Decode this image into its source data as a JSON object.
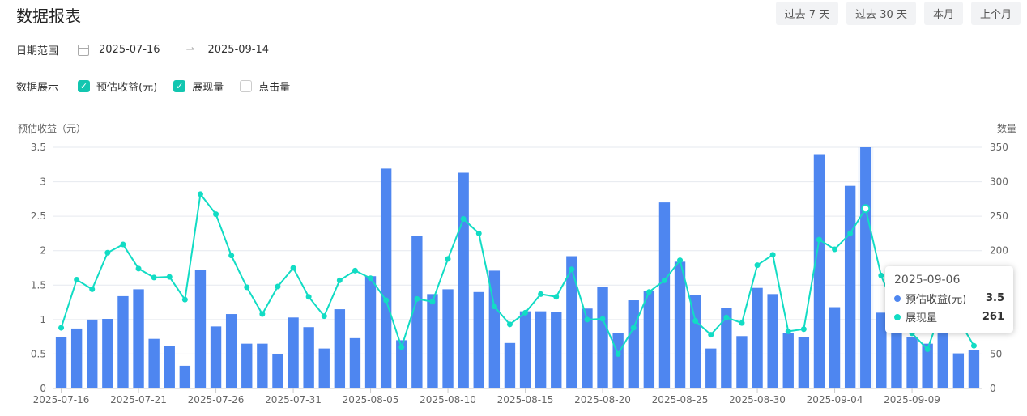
{
  "title": "数据报表",
  "range_buttons": [
    "过去 7 天",
    "过去 30 天",
    "本月",
    "上个月"
  ],
  "date_range": {
    "label": "日期范围",
    "start": "2025-07-16",
    "end": "2025-09-14",
    "icon": "calendar-icon"
  },
  "display": {
    "label": "数据展示",
    "options": [
      {
        "label": "预估收益(元)",
        "checked": true
      },
      {
        "label": "展现量",
        "checked": true
      },
      {
        "label": "点击量",
        "checked": false
      }
    ]
  },
  "colors": {
    "bar": "#4e86f0",
    "line": "#12dcc4",
    "accent": "#12c6b0"
  },
  "tooltip": {
    "date": "2025-09-06",
    "rows": [
      {
        "name": "预估收益(元)",
        "value": "3.5",
        "color": "#4e86f0"
      },
      {
        "name": "展现量",
        "value": "261",
        "color": "#12dcc4"
      }
    ]
  },
  "chart_data": {
    "type": "bar",
    "y_left_label": "预估收益（元）",
    "y_right_label": "数量",
    "ylim_left": [
      0,
      3.5
    ],
    "ylim_right": [
      0,
      350
    ],
    "y_left_ticks": [
      "0",
      "0.5",
      "1",
      "1.5",
      "2",
      "2.5",
      "3",
      "3.5"
    ],
    "y_right_ticks": [
      "0",
      "50",
      "100",
      "150",
      "200",
      "250",
      "300",
      "350"
    ],
    "x_tick_labels": [
      "2025-07-16",
      "2025-07-21",
      "2025-07-26",
      "2025-07-31",
      "2025-08-05",
      "2025-08-10",
      "2025-08-15",
      "2025-08-20",
      "2025-08-25",
      "2025-08-30",
      "2025-09-04",
      "2025-09-09"
    ],
    "x_tick_every": 5,
    "start_date": "2025-07-16",
    "highlight_index": 52,
    "grid": true,
    "series": [
      {
        "name": "预估收益(元)",
        "type": "bar",
        "axis": "left",
        "values": [
          0.74,
          0.87,
          1.0,
          1.01,
          1.34,
          1.44,
          0.72,
          0.62,
          0.33,
          1.72,
          0.9,
          1.08,
          0.65,
          0.65,
          0.5,
          1.03,
          0.89,
          0.58,
          1.15,
          0.73,
          1.63,
          3.19,
          0.7,
          2.21,
          1.37,
          1.44,
          3.13,
          1.4,
          1.71,
          0.66,
          1.12,
          1.12,
          1.11,
          1.92,
          1.16,
          1.48,
          0.8,
          1.28,
          1.41,
          2.7,
          1.84,
          1.36,
          0.58,
          1.17,
          0.76,
          1.46,
          1.37,
          0.8,
          0.75,
          3.4,
          1.18,
          2.94,
          3.5,
          1.1,
          1.0,
          0.75,
          0.65,
          0.85,
          0.51,
          0.56
        ]
      },
      {
        "name": "展现量",
        "type": "line",
        "axis": "right",
        "values": [
          88,
          158,
          144,
          197,
          209,
          174,
          161,
          162,
          129,
          282,
          253,
          193,
          147,
          108,
          148,
          175,
          133,
          105,
          157,
          171,
          160,
          128,
          60,
          130,
          126,
          188,
          246,
          225,
          119,
          93,
          110,
          137,
          133,
          173,
          100,
          101,
          50,
          88,
          140,
          157,
          186,
          98,
          78,
          103,
          95,
          179,
          194,
          83,
          86,
          216,
          202,
          225,
          261,
          164,
          110,
          80,
          57,
          120,
          100,
          62
        ]
      }
    ]
  }
}
